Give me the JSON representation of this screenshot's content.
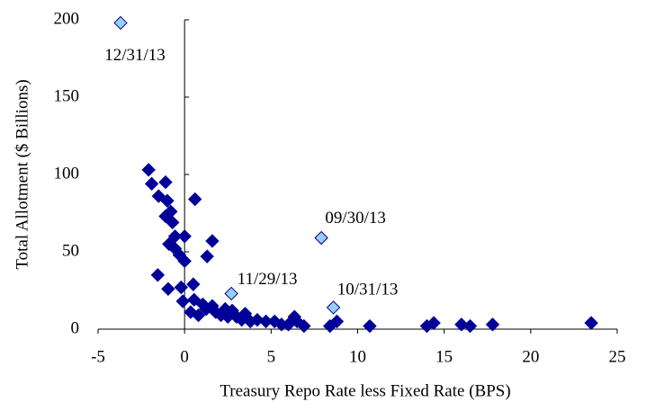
{
  "chart_data": {
    "type": "scatter",
    "xlabel": "Treasury Repo Rate less Fixed Rate (BPS)",
    "ylabel": "Total Allotment ($ Billions)",
    "xlim": [
      -5,
      25
    ],
    "ylim": [
      0,
      200
    ],
    "xticks": [
      -5,
      0,
      5,
      10,
      15,
      20,
      25
    ],
    "yticks": [
      0,
      50,
      100,
      150,
      200
    ],
    "series": [
      {
        "color": "#000099",
        "x": [
          -2.08,
          -1.9,
          -1.1,
          -1.5,
          -1.0,
          -0.8,
          -1.1,
          -0.7,
          -0.55,
          0,
          0.6,
          1.6,
          1.3,
          -0.9,
          -0.55,
          -0.3,
          0,
          -1.55,
          -0.95,
          -0.2,
          -0.1,
          0.5,
          0.55,
          1.05,
          1.25,
          1.6,
          1.8,
          2.1,
          2.35,
          2.5,
          2.75,
          3.0,
          3.3,
          3.5,
          3.8,
          4.2,
          4.7,
          5.2,
          5.6,
          6.0,
          6.35,
          6.5,
          6.9,
          8.4,
          8.8,
          10.7,
          14.0,
          14.4,
          16.0,
          16.5,
          17.8,
          23.5,
          0.35,
          0.8
        ],
        "y": [
          103,
          94,
          95,
          86,
          83,
          76,
          73,
          69,
          60,
          60,
          84,
          57,
          47,
          55,
          52,
          48,
          44,
          35,
          26,
          27,
          18,
          29,
          19,
          16,
          13,
          15,
          11,
          9,
          13,
          8,
          12,
          8,
          6,
          10,
          5,
          6,
          5,
          5,
          3,
          3,
          8,
          5,
          2,
          2,
          5,
          2,
          2,
          4,
          3,
          2,
          3,
          4,
          11,
          9
        ]
      },
      {
        "color": "#99ccff",
        "edgecolor": "#000080",
        "x": [
          -3.7,
          7.9,
          2.7,
          8.6
        ],
        "y": [
          198,
          59,
          23,
          14
        ],
        "labels": [
          "12/31/13",
          "09/30/13",
          "11/29/13",
          "10/31/13"
        ]
      }
    ]
  }
}
